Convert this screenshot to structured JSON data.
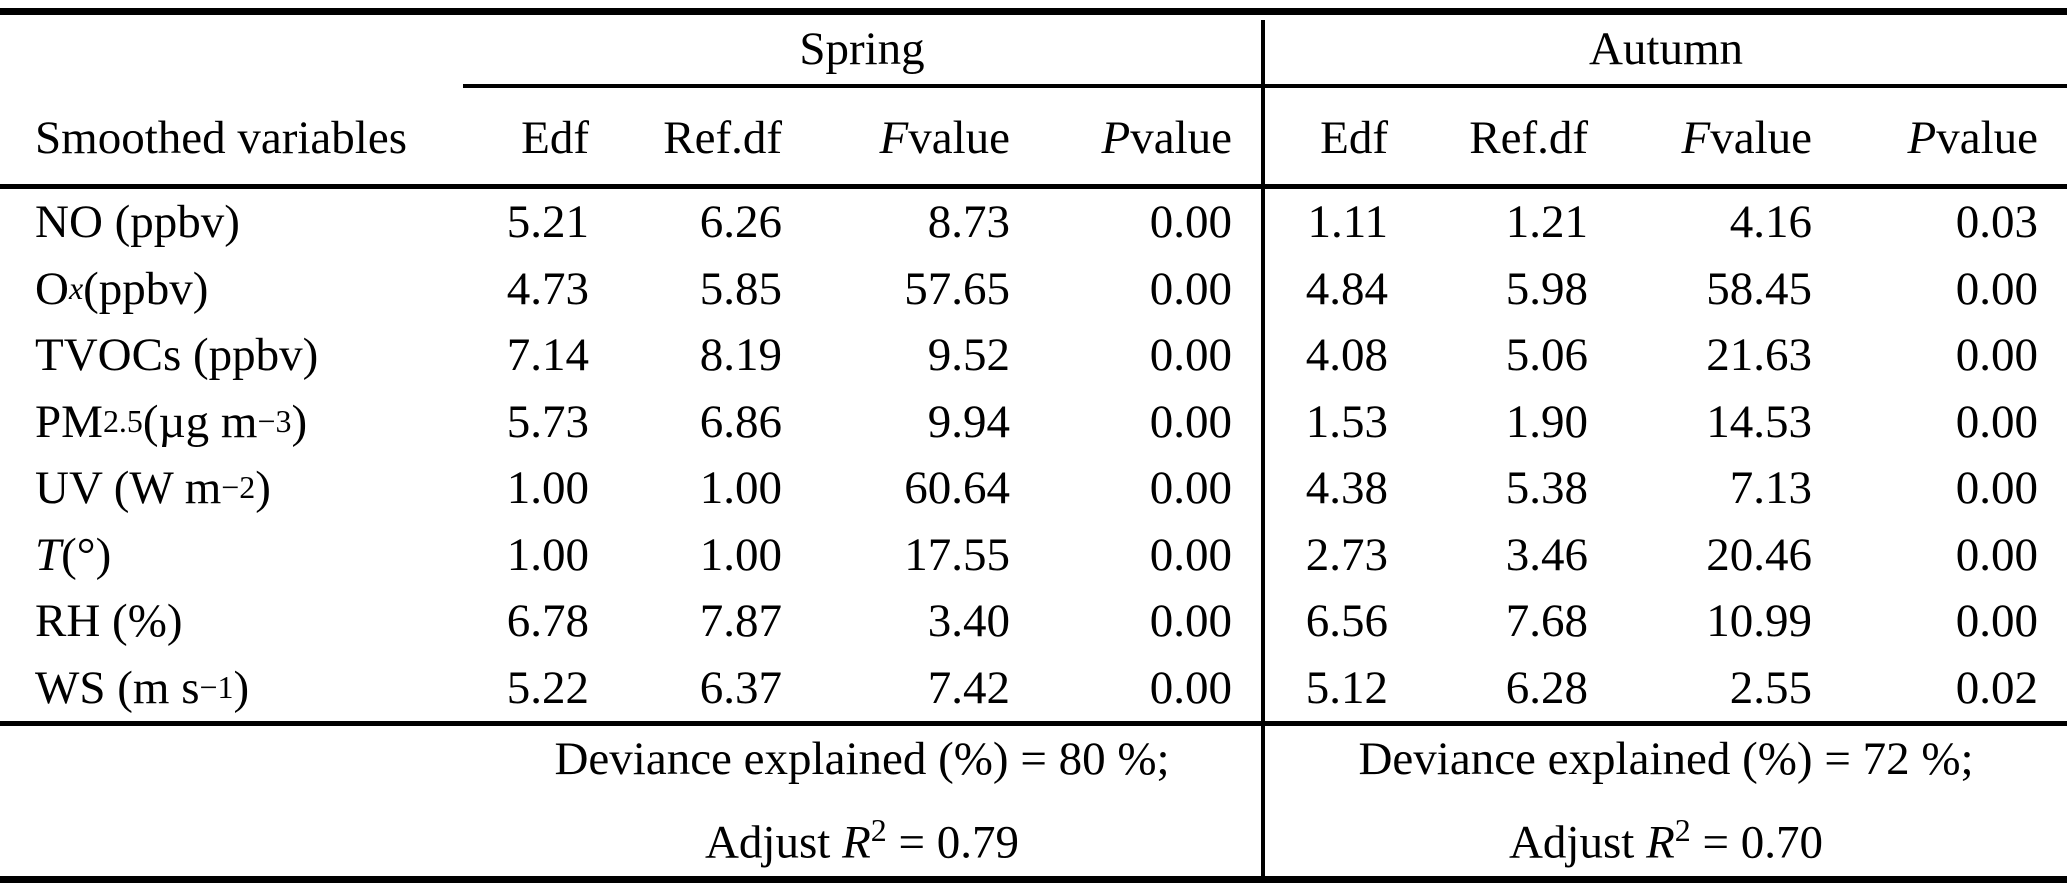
{
  "colors": {
    "background": "#ffffff",
    "text": "#000000",
    "rule": "#000000"
  },
  "seasons": [
    "Spring",
    "Autumn"
  ],
  "row_header": "Smoothed variables",
  "col_headers": {
    "edf": "Edf",
    "refdf": "Ref.df",
    "f": [
      {
        "t": "F",
        "style": "i"
      },
      {
        "t": " value"
      }
    ],
    "p": [
      {
        "t": "P",
        "style": "i"
      },
      {
        "t": " value"
      }
    ]
  },
  "rows": [
    {
      "label": [
        {
          "t": "NO (ppbv)"
        }
      ],
      "s": [
        "5.21",
        "6.26",
        "8.73",
        "0.00"
      ],
      "a": [
        "1.11",
        "1.21",
        "4.16",
        "0.03"
      ]
    },
    {
      "label": [
        {
          "t": "O"
        },
        {
          "t": "x",
          "style": "subi"
        },
        {
          "t": " (ppbv)"
        }
      ],
      "s": [
        "4.73",
        "5.85",
        "57.65",
        "0.00"
      ],
      "a": [
        "4.84",
        "5.98",
        "58.45",
        "0.00"
      ]
    },
    {
      "label": [
        {
          "t": "TVOCs (ppbv)"
        }
      ],
      "s": [
        "7.14",
        "8.19",
        "9.52",
        "0.00"
      ],
      "a": [
        "4.08",
        "5.06",
        "21.63",
        "0.00"
      ]
    },
    {
      "label": [
        {
          "t": "PM"
        },
        {
          "t": "2.5",
          "style": "sub"
        },
        {
          "t": " (µg m"
        },
        {
          "t": "−3",
          "style": "sup"
        },
        {
          "t": ")"
        }
      ],
      "s": [
        "5.73",
        "6.86",
        "9.94",
        "0.00"
      ],
      "a": [
        "1.53",
        "1.90",
        "14.53",
        "0.00"
      ]
    },
    {
      "label": [
        {
          "t": "UV (W m"
        },
        {
          "t": "−2",
          "style": "sup"
        },
        {
          "t": ")"
        }
      ],
      "s": [
        "1.00",
        "1.00",
        "60.64",
        "0.00"
      ],
      "a": [
        "4.38",
        "5.38",
        "7.13",
        "0.00"
      ]
    },
    {
      "label": [
        {
          "t": "T",
          "style": "i"
        },
        {
          "t": " (°)"
        }
      ],
      "s": [
        "1.00",
        "1.00",
        "17.55",
        "0.00"
      ],
      "a": [
        "2.73",
        "3.46",
        "20.46",
        "0.00"
      ]
    },
    {
      "label": [
        {
          "t": "RH (%)"
        }
      ],
      "s": [
        "6.78",
        "7.87",
        "3.40",
        "0.00"
      ],
      "a": [
        "6.56",
        "7.68",
        "10.99",
        "0.00"
      ]
    },
    {
      "label": [
        {
          "t": "WS (m s"
        },
        {
          "t": "−1",
          "style": "sup"
        },
        {
          "t": ")"
        }
      ],
      "s": [
        "5.22",
        "6.37",
        "7.42",
        "0.00"
      ],
      "a": [
        "5.12",
        "6.28",
        "2.55",
        "0.02"
      ]
    }
  ],
  "footer": {
    "spring": {
      "line1": [
        {
          "t": "Deviance explained (%) = 80 %;"
        }
      ],
      "line2": [
        {
          "t": "Adjust "
        },
        {
          "t": "R",
          "style": "i"
        },
        {
          "t": "2",
          "style": "sup"
        },
        {
          "t": " = 0.79"
        }
      ]
    },
    "autumn": {
      "line1": [
        {
          "t": "Deviance explained (%) = 72 %;"
        }
      ],
      "line2": [
        {
          "t": "Adjust "
        },
        {
          "t": "R",
          "style": "i"
        },
        {
          "t": "2",
          "style": "sup"
        },
        {
          "t": " = 0.70"
        }
      ]
    }
  }
}
